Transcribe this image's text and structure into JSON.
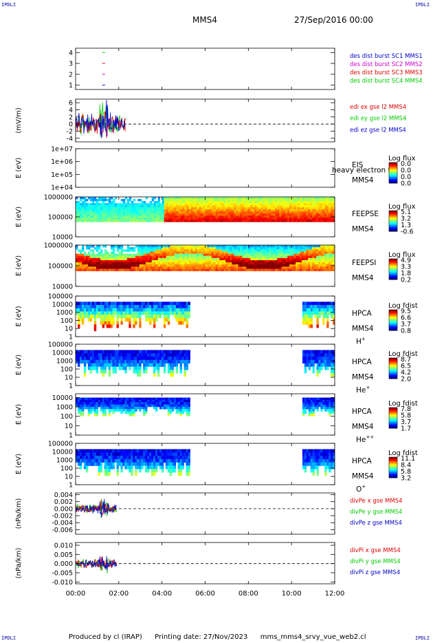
{
  "corner_tag": "IPDLI",
  "header": {
    "spacecraft": "MMS4",
    "date": "27/Sep/2016 00:00"
  },
  "footer": {
    "producer": "Produced by cl (IRAP)",
    "printing": "Printing date: 27/Nov/2023",
    "file": "mms_mms4_srvy_vue_web2.cl"
  },
  "colors": {
    "red": "#e00000",
    "green": "#00cc00",
    "blue": "#0000cc",
    "magenta": "#cc00cc",
    "black": "#000000"
  },
  "chart_data": {
    "type": "multi-panel-timeseries",
    "x_ticks": [
      "00:00",
      "02:00",
      "04:00",
      "06:00",
      "08:00",
      "10:00",
      "12:00"
    ],
    "x_range_hours": [
      0,
      12
    ],
    "panels": [
      {
        "id": "burst",
        "type": "line",
        "ylabel": "",
        "y_ticks": [
          "4",
          "3",
          "2",
          "1"
        ],
        "y_values": [
          4,
          3,
          2,
          1
        ],
        "ylim": [
          0.6,
          4.4
        ],
        "legend": [
          {
            "text": "des dist burst SC1 MMS1",
            "color": "#0000cc"
          },
          {
            "text": "des dist burst SC2 MMS2",
            "color": "#cc00cc"
          },
          {
            "text": "des dist burst SC3 MMS3",
            "color": "#e00000"
          },
          {
            "text": "des dist burst SC4 MMS4",
            "color": "#00cc00"
          }
        ],
        "marks": [
          {
            "t": 1.3,
            "y": 4,
            "color": "#00cc00"
          },
          {
            "t": 1.3,
            "y": 3,
            "color": "#e00000"
          },
          {
            "t": 1.3,
            "y": 2,
            "color": "#cc00cc"
          },
          {
            "t": 1.3,
            "y": 1,
            "color": "#0000cc"
          }
        ]
      },
      {
        "id": "edi",
        "type": "line",
        "ylabel": "(mV/m)",
        "y_ticks": [
          "6",
          "4",
          "2",
          "0",
          "-2",
          "-4"
        ],
        "y_values": [
          6,
          4,
          2,
          0,
          -2,
          -4
        ],
        "ylim": [
          -5,
          7
        ],
        "legend": [
          {
            "text": "edi ex gse l2 MMS4",
            "color": "#e00000"
          },
          {
            "text": "edi ey gse l2 MMS4",
            "color": "#00cc00"
          },
          {
            "text": "edi ez gse l2 MMS4",
            "color": "#0000cc"
          }
        ],
        "series_span_hours": [
          0.0,
          2.3
        ]
      },
      {
        "id": "eis",
        "type": "heatmap",
        "ylabel": "E (eV)",
        "y_ticks": [
          "1e+07",
          "1e+06",
          "1e+05",
          "1e+04"
        ],
        "y_values": [
          7,
          6,
          5,
          4
        ],
        "ylim": [
          4,
          7
        ],
        "side": [
          "EIS",
          "MMS4"
        ],
        "overlay_text": "heavy electron to",
        "colorbar": {
          "title": "Log flux",
          "labels": [
            "0.0",
            "0.0",
            "0.0",
            "0.0"
          ]
        },
        "coverage_hours": []
      },
      {
        "id": "feepse",
        "type": "heatmap",
        "ylabel": "E (eV)",
        "y_ticks": [
          "1000000",
          "100000",
          "10000"
        ],
        "y_values": [
          6,
          5,
          4
        ],
        "ylim": [
          4,
          6
        ],
        "side": [
          "FEEPSE",
          "MMS4"
        ],
        "colorbar": {
          "title": "Log flux",
          "labels": [
            "5.1",
            "3.2",
            "1.3",
            "-0.6"
          ]
        },
        "coverage_hours": [
          [
            0,
            12
          ]
        ]
      },
      {
        "id": "feepsi",
        "type": "heatmap",
        "ylabel": "E (eV)",
        "y_ticks": [
          "1000000",
          "100000",
          "10000"
        ],
        "y_values": [
          6,
          5,
          4
        ],
        "ylim": [
          4,
          6
        ],
        "side": [
          "FEEPSI",
          "MMS4"
        ],
        "colorbar": {
          "title": "Log flux",
          "labels": [
            "4.9",
            "3.3",
            "1.8",
            "0.2"
          ]
        },
        "coverage_hours": [
          [
            0,
            12
          ]
        ]
      },
      {
        "id": "hpca_h",
        "type": "heatmap",
        "ylabel": "E (eV)",
        "y_ticks": [
          "100000",
          "10000",
          "1000",
          "100",
          "10",
          "1"
        ],
        "y_values": [
          5,
          4,
          3,
          2,
          1,
          0
        ],
        "ylim": [
          0,
          5
        ],
        "side": [
          "HPCA",
          "MMS4"
        ],
        "species": "H",
        "species_sup": "+",
        "colorbar": {
          "title": "Log fdist",
          "labels": [
            "9.5",
            "6.6",
            "3.7",
            "0.8"
          ]
        },
        "coverage_hours": [
          [
            0,
            5.3
          ],
          [
            10.5,
            12
          ]
        ]
      },
      {
        "id": "hpca_he",
        "type": "heatmap",
        "ylabel": "E (eV)",
        "y_ticks": [
          "100000",
          "10000",
          "1000",
          "100",
          "10",
          "1"
        ],
        "y_values": [
          5,
          4,
          3,
          2,
          1,
          0
        ],
        "ylim": [
          0,
          5
        ],
        "side": [
          "HPCA",
          "MMS4"
        ],
        "species": "He",
        "species_sup": "+",
        "colorbar": {
          "title": "Log fdist",
          "labels": [
            "8.7",
            "6.5",
            "4.2",
            "2.0"
          ]
        },
        "coverage_hours": [
          [
            0,
            5.3
          ],
          [
            10.5,
            12
          ]
        ]
      },
      {
        "id": "hpca_hepp",
        "type": "heatmap",
        "ylabel": "E (eV)",
        "y_ticks": [
          "10000",
          "1000",
          "100",
          "10",
          "1"
        ],
        "y_values": [
          4,
          3,
          2,
          1,
          0
        ],
        "ylim": [
          0,
          4.4
        ],
        "side": [
          "HPCA",
          "MMS4"
        ],
        "species": "He",
        "species_sup": "++",
        "colorbar": {
          "title": "Log fdist",
          "labels": [
            "7.8",
            "5.8",
            "3.7",
            "1.7"
          ]
        },
        "coverage_hours": [
          [
            0,
            5.3
          ],
          [
            10.5,
            12
          ]
        ]
      },
      {
        "id": "hpca_o",
        "type": "heatmap",
        "ylabel": "E (eV)",
        "y_ticks": [
          "100000",
          "10000",
          "1000",
          "100",
          "10",
          "1"
        ],
        "y_values": [
          5,
          4,
          3,
          2,
          1,
          0
        ],
        "ylim": [
          0,
          5
        ],
        "side": [
          "HPCA",
          "MMS4"
        ],
        "species": "O",
        "species_sup": "+",
        "colorbar": {
          "title": "Log fdist",
          "labels": [
            "11.1",
            "8.4",
            "5.8",
            "3.2"
          ]
        },
        "coverage_hours": [
          [
            0,
            5.3
          ],
          [
            10.5,
            12
          ]
        ]
      },
      {
        "id": "divpe",
        "type": "line",
        "ylabel": "(nPa/km)",
        "y_ticks": [
          "0.004",
          "0.002",
          "0.000",
          "-0.002",
          "-0.004",
          "-0.006"
        ],
        "y_values": [
          0.004,
          0.002,
          0,
          -0.002,
          -0.004,
          -0.006
        ],
        "ylim": [
          -0.0073,
          0.0045
        ],
        "legend": [
          {
            "text": "divPe x gse MMS4",
            "color": "#e00000"
          },
          {
            "text": "divPe y gse MMS4",
            "color": "#00cc00"
          },
          {
            "text": "divPe z gse MMS4",
            "color": "#0000cc"
          }
        ],
        "series_span_hours": [
          0.0,
          1.9
        ]
      },
      {
        "id": "divpi",
        "type": "line",
        "ylabel": "(nPa/km)",
        "y_ticks": [
          "0.010",
          "0.005",
          "0.000",
          "-0.005",
          "-0.010"
        ],
        "y_values": [
          0.01,
          0.005,
          0,
          -0.005,
          -0.01
        ],
        "ylim": [
          -0.011,
          0.0115
        ],
        "legend": [
          {
            "text": "divPi x gse MMS4",
            "color": "#e00000"
          },
          {
            "text": "divPi y gse MMS4",
            "color": "#00cc00"
          },
          {
            "text": "divPi z gse MMS4",
            "color": "#0000cc"
          }
        ],
        "series_span_hours": [
          0.0,
          1.9
        ]
      }
    ]
  }
}
